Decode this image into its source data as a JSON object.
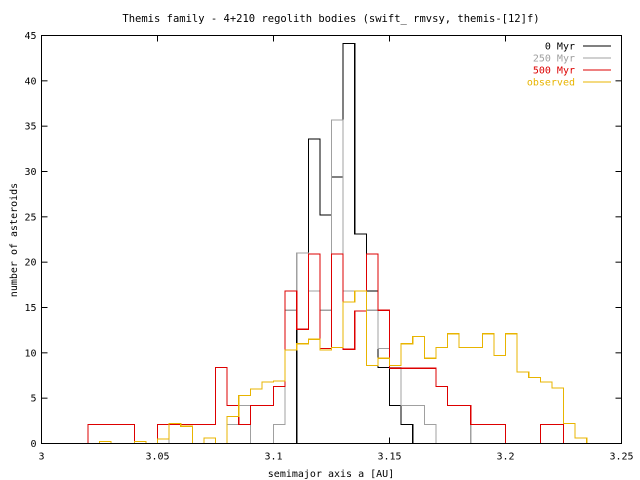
{
  "chart_data": {
    "type": "line",
    "title": "Themis family - 4+210 regolith bodies (swift_ rmvsy, themis-[12]f)",
    "xlabel": "semimajor axis a [AU]",
    "ylabel": "number of asteroids",
    "xlim": [
      3.0,
      3.25
    ],
    "ylim": [
      0,
      45
    ],
    "grid": false,
    "legend": "top-right",
    "xticks": [
      "3",
      "3.05",
      "3.1",
      "3.15",
      "3.2",
      "3.25"
    ],
    "yticks": [
      "0",
      "5",
      "10",
      "15",
      "20",
      "25",
      "30",
      "35",
      "40",
      "45"
    ],
    "bin_edges": [
      3.0,
      3.005,
      3.01,
      3.015,
      3.02,
      3.025,
      3.03,
      3.035,
      3.04,
      3.045,
      3.05,
      3.055,
      3.06,
      3.065,
      3.07,
      3.075,
      3.08,
      3.085,
      3.09,
      3.095,
      3.1,
      3.105,
      3.11,
      3.115,
      3.12,
      3.125,
      3.13,
      3.135,
      3.14,
      3.145,
      3.15,
      3.155,
      3.16,
      3.165,
      3.17,
      3.175,
      3.18,
      3.185,
      3.19,
      3.195,
      3.2,
      3.205,
      3.21,
      3.215,
      3.22,
      3.225,
      3.23,
      3.235,
      3.24,
      3.245,
      3.25
    ],
    "series": [
      {
        "name": "0 Myr",
        "color": "#000000",
        "values": [
          0,
          0,
          0,
          0,
          0,
          0,
          0,
          0,
          0,
          0,
          0,
          0,
          0,
          0,
          0,
          0,
          0,
          0,
          0,
          0,
          0,
          0,
          12.6,
          33.6,
          25.2,
          29.4,
          44.1,
          23.1,
          16.8,
          8.4,
          4.2,
          2.1,
          0,
          0,
          0,
          0,
          0,
          0,
          0,
          0,
          0,
          0,
          0,
          0,
          0,
          0,
          0,
          0,
          0,
          0
        ]
      },
      {
        "name": "250 Myr",
        "color": "#a0a0a0",
        "values": [
          0,
          0,
          0,
          0,
          0,
          0,
          0,
          0,
          0,
          0,
          2.1,
          0,
          0,
          0,
          0,
          0,
          2.1,
          4.2,
          0,
          0,
          2.1,
          14.7,
          21.0,
          16.8,
          14.7,
          35.7,
          16.8,
          16.8,
          14.7,
          10.5,
          8.4,
          4.2,
          4.2,
          2.1,
          0,
          0,
          0,
          2.1,
          2.1,
          2.1,
          0,
          0,
          0,
          0,
          0,
          0,
          0,
          0,
          0,
          0
        ]
      },
      {
        "name": "500 Myr",
        "color": "#dd0000",
        "values": [
          0,
          0,
          0,
          0,
          2.1,
          2.1,
          2.1,
          2.1,
          0,
          0,
          2.1,
          2.1,
          2.1,
          2.1,
          2.1,
          8.4,
          4.2,
          2.1,
          4.2,
          4.2,
          6.3,
          16.8,
          12.6,
          20.9,
          10.5,
          20.9,
          10.4,
          14.6,
          20.9,
          14.7,
          8.3,
          8.3,
          8.3,
          8.3,
          6.3,
          4.2,
          4.2,
          2.1,
          2.1,
          2.1,
          0,
          0,
          0,
          2.1,
          2.1,
          0,
          0,
          0,
          0,
          0
        ]
      },
      {
        "name": "observed",
        "color": "#e8b400",
        "values": [
          0,
          0,
          0,
          0,
          0,
          0.2,
          0,
          0,
          0.2,
          0,
          0.5,
          2.2,
          1.9,
          0,
          0.6,
          0,
          3.0,
          5.3,
          6.0,
          6.8,
          6.9,
          10.3,
          11.0,
          11.5,
          10.3,
          10.6,
          15.6,
          16.8,
          8.6,
          9.4,
          8.6,
          11.0,
          11.8,
          9.4,
          10.6,
          12.1,
          10.6,
          10.6,
          12.1,
          9.7,
          12.1,
          7.9,
          7.3,
          6.8,
          6.1,
          2.2,
          0.6,
          0,
          0,
          0
        ]
      }
    ]
  }
}
